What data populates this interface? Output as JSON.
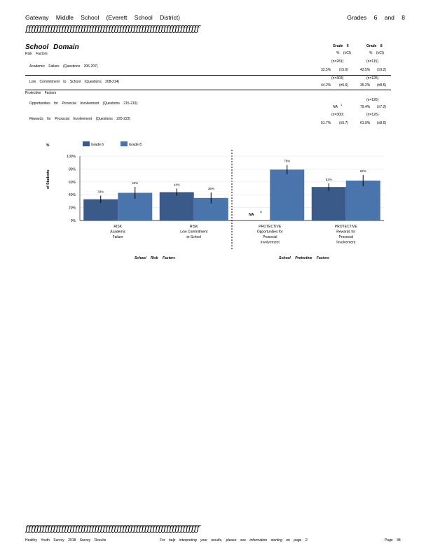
{
  "header": {
    "school": "Gateway Middle School (Everett School District)",
    "grades": "Grades 6 and 8",
    "rule": "ƒƒƒƒƒƒƒƒƒƒƒƒƒƒƒƒƒƒƒƒƒƒƒƒƒƒƒƒƒƒƒƒƒƒƒƒƒƒƒƒƒƒƒƒƒƒƒƒƒƒƒƒƒƒƒƒƒƒƒƒƒƒƒ"
  },
  "domain": {
    "title": "School Domain",
    "risk_label": "Risk Factors",
    "protective_label": "Protective Factors",
    "col6": {
      "title": "Grade 6",
      "sub": "% (±CI)"
    },
    "col8": {
      "title": "Grade 8",
      "sub": "% (±CI)"
    },
    "rows": [
      {
        "label": "Academic Failure (Questions 206-207)",
        "n6": "(n=281)",
        "n8": "(n=115)",
        "v6": "33.5%",
        "ci6": "(±5.6)",
        "v8": "43.5%",
        "ci8": "(±9.2)"
      },
      {
        "label": "Low Commitment to School (Questions 208-214)",
        "n6": "(n=303)",
        "n8": "(n=125)",
        "v6": "44.2%",
        "ci6": "(±5.6)",
        "v8": "35.2%",
        "ci8": "(±8.5)"
      },
      {
        "label": "Opportunities for Prosocial Involvement (Questions 215-219)",
        "n6": "",
        "n8": "(n=126)",
        "v6": "NA",
        "ci6": "",
        "v8": "79.4%",
        "ci8": "(±7.2)",
        "note6": "1"
      },
      {
        "label": "Rewards for Prosocial Involvement (Questions 220-223)",
        "n6": "(n=300)",
        "n8": "(n=126)",
        "v6": "51.7%",
        "ci6": "(±5.7)",
        "v8": "61.9%",
        "ci8": "(±8.6)"
      }
    ]
  },
  "chart_data": {
    "type": "bar",
    "ylabel_mark": "%",
    "ylabel": "of Students",
    "ylim": [
      0,
      100
    ],
    "yticks": [
      "100%",
      "80%",
      "60%",
      "40%",
      "20%",
      "0%"
    ],
    "legend": [
      "Grade 6",
      "Grade 8"
    ],
    "colors": [
      "#3a5a8a",
      "#4a74ac"
    ],
    "categories": [
      [
        "RISK",
        "Academic",
        "Failure"
      ],
      [
        "RISK",
        "Low Commitment",
        "to School"
      ],
      [
        "PROTECTIVE",
        "Opportunities for",
        "Prosocial",
        "Involvement"
      ],
      [
        "PROTECTIVE",
        "Rewards for",
        "Prosocial",
        "Involvement"
      ]
    ],
    "series": [
      {
        "name": "Grade 6",
        "values": [
          33,
          44,
          null,
          52
        ],
        "labels": [
          "33%",
          "44%",
          "",
          "52%"
        ],
        "ci": [
          5.6,
          5.6,
          null,
          5.7
        ]
      },
      {
        "name": "Grade 8",
        "values": [
          43,
          35,
          79,
          62
        ],
        "labels": [
          "43%",
          "35%",
          "79%",
          "62%"
        ],
        "ci": [
          9.2,
          8.5,
          7.2,
          8.6
        ]
      }
    ],
    "na_label": "NA",
    "na_note": "G",
    "group_labels": [
      "School Risk Factors",
      "School Protective Factors"
    ]
  },
  "footer": {
    "left": "Healthy Youth Survey 2018 Survey Results",
    "center": "For help interpreting your results, please see information starting on page 2.",
    "right": "Page 38"
  }
}
